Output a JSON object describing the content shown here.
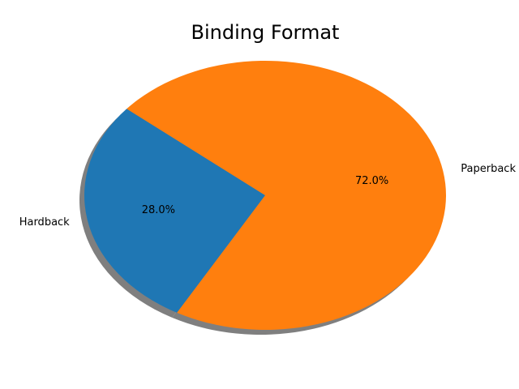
{
  "chart_data": {
    "type": "pie",
    "title": "Binding Format",
    "categories": [
      "Hardback",
      "Paperback"
    ],
    "values": [
      28.0,
      72.0
    ],
    "percent_labels": [
      "28.0%",
      "72.0%"
    ],
    "colors": [
      "#1f77b4",
      "#ff7f0e"
    ],
    "shadow": true,
    "start_angle_deg": 140,
    "direction": "counterclockwise"
  }
}
